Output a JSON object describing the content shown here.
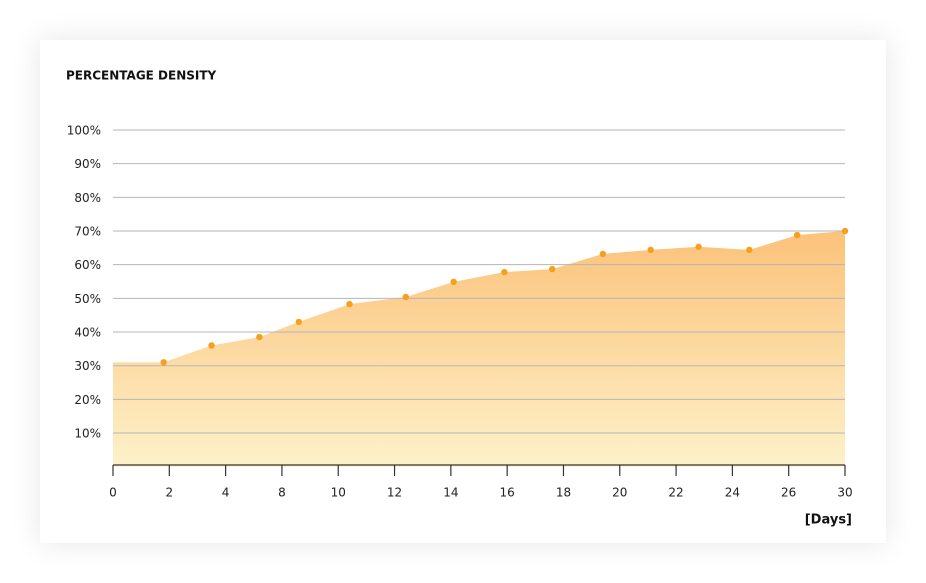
{
  "chart_data": {
    "type": "area",
    "title": "PERCENTAGE DENSITY",
    "x_label": "[Days]",
    "x": [
      1.8,
      3.5,
      6.4,
      8.6,
      10.4,
      12.4,
      14.1,
      15.9,
      17.6,
      19.4,
      21.1,
      22.8,
      24.6,
      26.6,
      30
    ],
    "series": [
      {
        "color": "#f5a11d",
        "values": [
          31,
          36,
          38.5,
          43,
          48.3,
          50.4,
          54.9,
          57.8,
          58.7,
          63.2,
          64.4,
          65.3,
          64.4,
          68.8,
          70
        ]
      }
    ],
    "xlim": [
      0,
      30
    ],
    "xticks": [
      0,
      2,
      4,
      8,
      10,
      12,
      14,
      16,
      18,
      20,
      22,
      24,
      26,
      30
    ],
    "ylim": [
      0,
      100
    ],
    "yticks": [
      {
        "value": 10,
        "label": "10%"
      },
      {
        "value": 20,
        "label": "20%"
      },
      {
        "value": 30,
        "label": "30%"
      },
      {
        "value": 40,
        "label": "40%"
      },
      {
        "value": 50,
        "label": "50%"
      },
      {
        "value": 60,
        "label": "60%"
      },
      {
        "value": 70,
        "label": "70%"
      },
      {
        "value": 80,
        "label": "80%"
      },
      {
        "value": 90,
        "label": "90%"
      },
      {
        "value": 100,
        "label": "100%"
      }
    ],
    "grid": true
  }
}
